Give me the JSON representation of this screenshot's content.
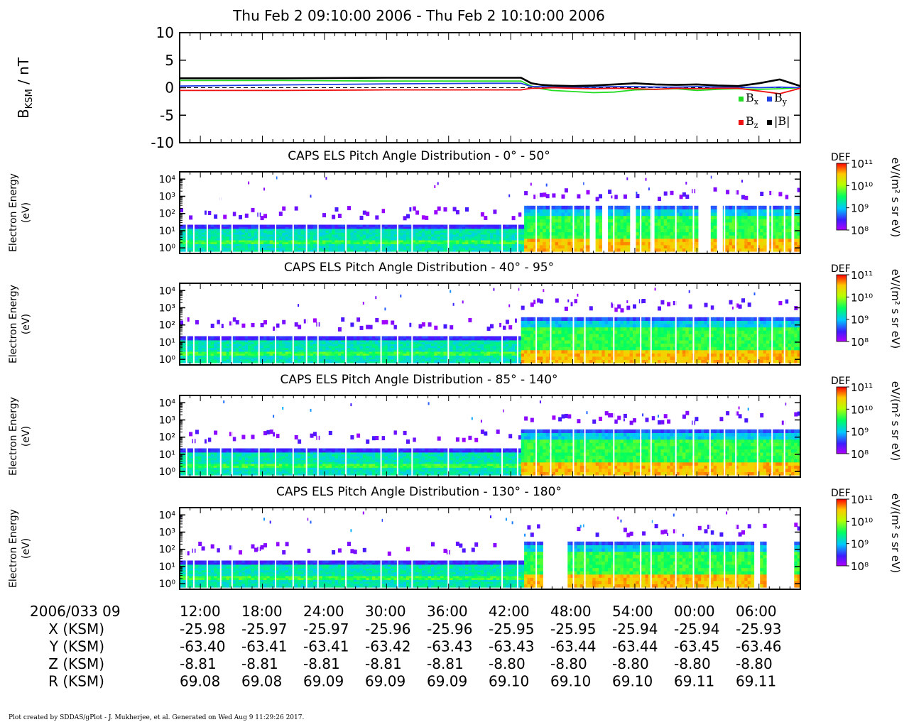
{
  "title": "Thu Feb 2 09:10:00 2006 - Thu Feb 2 10:10:00 2006",
  "footer": "Plot created by SDDAS/gPlot - J. Mukherjee, et al.  Generated on Wed Aug 9 11:29:26 2017.",
  "mag": {
    "ylabel_main": "B",
    "ylabel_sub": "KSM",
    "ylabel_unit": " / nT",
    "yticks": [
      "10",
      "5",
      "0",
      "-5",
      "-10"
    ],
    "legend": [
      {
        "name": "x",
        "color": "#22dd22"
      },
      {
        "name": "y",
        "color": "#1f3fe6"
      },
      {
        "name": "z",
        "color": "#ee1111"
      },
      {
        "name": "|B|",
        "color": "#000000"
      }
    ]
  },
  "spectro": {
    "ylabel_1": "Electron Energy",
    "ylabel_2": "(eV)",
    "cbar_label": "DEF",
    "cbar_units": "eV/(m² s sr eV)",
    "cbar_ticks": [
      "10¹¹",
      "10¹⁰",
      "10⁹",
      "10⁸"
    ],
    "panels": [
      {
        "title": "CAPS ELS Pitch Angle Distribution - 0° - 50°"
      },
      {
        "title": "CAPS ELS Pitch Angle Distribution - 40° - 95°"
      },
      {
        "title": "CAPS ELS Pitch Angle Distribution - 85° - 140°"
      },
      {
        "title": "CAPS ELS Pitch Angle Distribution - 130° - 180°"
      }
    ]
  },
  "chart_data": [
    {
      "type": "line",
      "title": "Thu Feb 2 09:10:00 2006 - Thu Feb 2 10:10:00 2006",
      "ylabel": "BKSM / nT",
      "ylim": [
        -10,
        10
      ],
      "x_unit": "minutes after 09:10 UT",
      "xlim": [
        0,
        60
      ],
      "series": [
        {
          "name": "Bx",
          "x": [
            0,
            5,
            10,
            20,
            30,
            33,
            34,
            35,
            36,
            38,
            40,
            42,
            44,
            46,
            48,
            50,
            52,
            54,
            56,
            58,
            60
          ],
          "values": [
            1.3,
            1.3,
            1.3,
            1.2,
            1.2,
            1.2,
            0.3,
            -0.2,
            -0.5,
            -0.7,
            -0.9,
            -0.8,
            -0.4,
            -0.3,
            -0.2,
            -0.5,
            -0.3,
            -0.2,
            -0.3,
            -0.2,
            0.0
          ]
        },
        {
          "name": "By",
          "x": [
            0,
            5,
            10,
            20,
            30,
            33,
            34,
            35,
            36,
            38,
            40,
            42,
            44,
            46,
            48,
            50,
            52,
            54,
            56,
            58,
            60
          ],
          "values": [
            0.3,
            0.4,
            0.5,
            0.7,
            0.8,
            0.8,
            0.2,
            0.2,
            0.1,
            0.1,
            0.1,
            0.2,
            0.2,
            0.1,
            0.1,
            0.2,
            0.1,
            0.1,
            0.0,
            0.1,
            0.0
          ]
        },
        {
          "name": "Bz",
          "x": [
            0,
            5,
            10,
            20,
            30,
            33,
            34,
            35,
            36,
            38,
            40,
            42,
            44,
            46,
            48,
            50,
            52,
            54,
            56,
            58,
            60
          ],
          "values": [
            -0.5,
            -0.5,
            -0.5,
            -0.4,
            -0.4,
            -0.4,
            -0.1,
            -0.1,
            0.0,
            -0.1,
            -0.2,
            -0.1,
            -0.2,
            -0.3,
            -0.1,
            -0.2,
            -0.1,
            -0.1,
            -0.6,
            -1.1,
            -0.1
          ]
        },
        {
          "name": "|B|",
          "x": [
            0,
            5,
            10,
            20,
            30,
            33,
            34,
            35,
            36,
            38,
            40,
            42,
            44,
            46,
            48,
            50,
            52,
            54,
            56,
            58,
            60
          ],
          "values": [
            1.7,
            1.7,
            1.7,
            1.8,
            1.8,
            1.8,
            0.8,
            0.5,
            0.4,
            0.3,
            0.4,
            0.6,
            0.8,
            0.6,
            0.5,
            0.6,
            0.4,
            0.3,
            0.8,
            1.5,
            0.3
          ]
        }
      ]
    },
    {
      "type": "heatmap",
      "title": "CAPS ELS Pitch Angle Distribution",
      "ylabel": "Electron Energy (eV)",
      "y_scale": "log",
      "yticks": [
        "10⁰",
        "10¹",
        "10²",
        "10³",
        "10⁴"
      ],
      "colorbar": {
        "label": "DEF",
        "units": "eV/(m² s sr eV)",
        "range": [
          "10⁸",
          "10¹¹"
        ],
        "scale": "log"
      }
    }
  ],
  "ephem": {
    "date_label": "2006/033 09",
    "times": [
      "12:00",
      "18:00",
      "24:00",
      "30:00",
      "36:00",
      "42:00",
      "48:00",
      "54:00",
      "00:00",
      "06:00"
    ],
    "rows": [
      {
        "label": "X (KSM)",
        "values": [
          "-25.98",
          "-25.97",
          "-25.97",
          "-25.96",
          "-25.96",
          "-25.95",
          "-25.95",
          "-25.94",
          "-25.94",
          "-25.93"
        ]
      },
      {
        "label": "Y (KSM)",
        "values": [
          "-63.40",
          "-63.41",
          "-63.41",
          "-63.42",
          "-63.43",
          "-63.43",
          "-63.44",
          "-63.44",
          "-63.45",
          "-63.46"
        ]
      },
      {
        "label": "Z (KSM)",
        "values": [
          "-8.81",
          "-8.81",
          "-8.81",
          "-8.81",
          "-8.81",
          "-8.80",
          "-8.80",
          "-8.80",
          "-8.80",
          "-8.80"
        ]
      },
      {
        "label": "R (KSM)",
        "values": [
          "69.08",
          "69.08",
          "69.09",
          "69.09",
          "69.09",
          "69.10",
          "69.10",
          "69.10",
          "69.11",
          "69.11"
        ]
      }
    ]
  }
}
